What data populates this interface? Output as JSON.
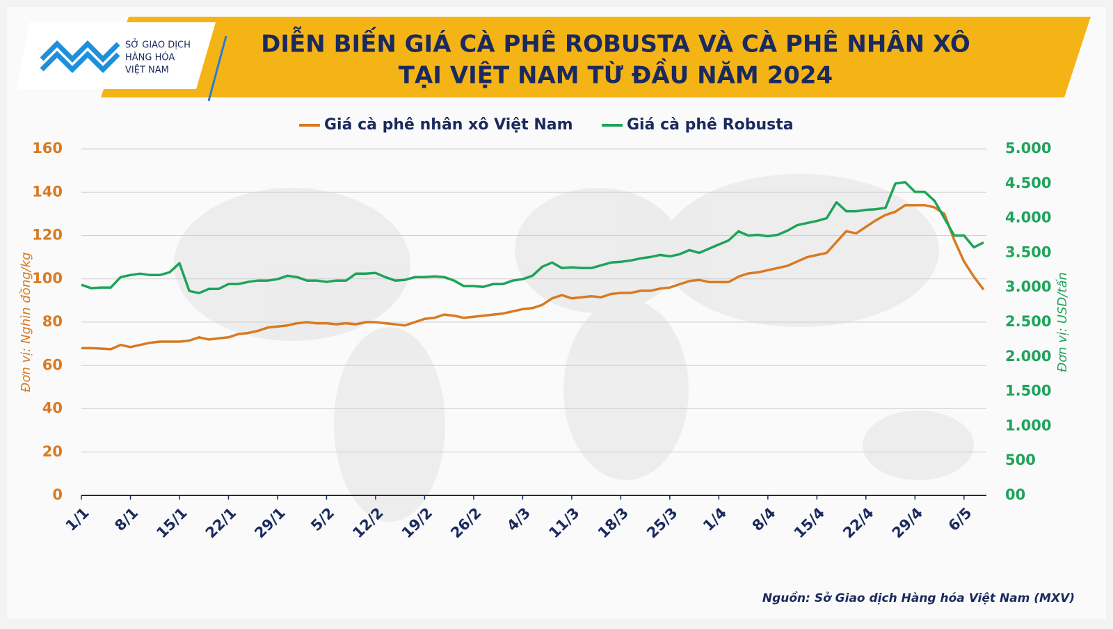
{
  "logo": [
    "SỞ GIAO DỊCH",
    "HÀNG HÓA",
    "VIỆT NAM"
  ],
  "source": "Nguồn: Sở Giao dịch Hàng hóa Việt Nam (MXV)",
  "chart_data": {
    "type": "line",
    "title": [
      "DIỄN BIẾN GIÁ CÀ PHÊ ROBUSTA VÀ CÀ PHÊ NHÂN XÔ",
      "TẠI VIỆT NAM TỪ ĐẦU NĂM 2024"
    ],
    "y_label": "Đơn vị: Nghìn đồng/kg",
    "y2_label": "Đơn vị: USD/tấn",
    "categories": [
      "1/1",
      null,
      null,
      null,
      null,
      "8/1",
      null,
      null,
      null,
      null,
      "15/1",
      null,
      null,
      null,
      null,
      "22/1",
      null,
      null,
      null,
      null,
      "29/1",
      null,
      null,
      null,
      null,
      "5/2",
      null,
      null,
      null,
      null,
      "12/2",
      null,
      null,
      null,
      null,
      "19/2",
      null,
      null,
      null,
      null,
      "26/2",
      null,
      null,
      null,
      null,
      "4/3",
      null,
      null,
      null,
      null,
      "11/3",
      null,
      null,
      null,
      null,
      "18/3",
      null,
      null,
      null,
      null,
      "25/3",
      null,
      null,
      null,
      null,
      "1/4",
      null,
      null,
      null,
      null,
      "8/4",
      null,
      null,
      null,
      null,
      "15/4",
      null,
      null,
      null,
      null,
      "22/4",
      null,
      null,
      null,
      null,
      "29/4",
      null,
      null,
      null,
      null,
      "6/5",
      null,
      null
    ],
    "series": [
      {
        "name": "Giá cà phê nhân xô Việt Nam",
        "color": "#d87a22",
        "values": [
          68,
          68,
          67.8,
          67.5,
          69.5,
          68.5,
          69.5,
          70.5,
          71,
          71,
          71,
          71.5,
          73,
          72,
          72.5,
          73,
          74.5,
          75,
          76,
          77.5,
          78,
          78.5,
          79.5,
          80,
          79.5,
          79.5,
          79,
          79.5,
          79,
          80,
          80,
          79.5,
          79,
          78.5,
          80,
          81.5,
          82,
          83.5,
          83,
          82,
          82.5,
          83,
          83.5,
          84,
          85,
          86,
          86.5,
          88,
          91,
          92.5,
          91,
          91.5,
          92,
          91.5,
          93,
          93.5,
          93.5,
          94.5,
          94.5,
          95.5,
          96,
          97.5,
          99,
          99.5,
          98.5,
          98.5,
          98.5,
          101,
          102.5,
          103,
          104,
          105,
          106,
          108,
          110,
          111,
          112,
          117,
          122,
          121,
          124,
          127,
          129.5,
          131,
          134,
          134,
          134,
          133,
          130,
          118,
          108,
          101,
          95
        ]
      },
      {
        "name": "Giá cà phê Robusta",
        "color": "#1ea35a",
        "axis": "y2",
        "values": [
          3040,
          2990,
          3000,
          3000,
          3150,
          3180,
          3200,
          3180,
          3180,
          3220,
          3350,
          2950,
          2920,
          2980,
          2980,
          3050,
          3050,
          3080,
          3100,
          3100,
          3120,
          3170,
          3150,
          3100,
          3100,
          3080,
          3100,
          3100,
          3200,
          3200,
          3210,
          3150,
          3100,
          3110,
          3150,
          3150,
          3160,
          3150,
          3100,
          3020,
          3020,
          3010,
          3050,
          3050,
          3100,
          3120,
          3170,
          3300,
          3360,
          3280,
          3290,
          3280,
          3280,
          3320,
          3360,
          3370,
          3390,
          3420,
          3440,
          3470,
          3450,
          3480,
          3540,
          3500,
          3560,
          3620,
          3680,
          3810,
          3750,
          3760,
          3740,
          3760,
          3820,
          3900,
          3930,
          3960,
          4000,
          4230,
          4100,
          4100,
          4120,
          4130,
          4150,
          4500,
          4520,
          4380,
          4380,
          4250,
          4000,
          3750,
          3750,
          3580,
          3650
        ]
      }
    ],
    "ylim": [
      0,
      160
    ],
    "yticks": [
      0,
      20,
      40,
      60,
      80,
      100,
      120,
      140,
      160
    ],
    "y2lim": [
      0,
      5000
    ],
    "y2ticks": [
      {
        "value": 0,
        "label": "00"
      },
      500,
      {
        "value": 1000,
        "label": "1.000"
      },
      {
        "value": 1500,
        "label": "1.500"
      },
      {
        "value": 2000,
        "label": "2.000"
      },
      {
        "value": 2500,
        "label": "2.500"
      },
      {
        "value": 3000,
        "label": "3.000"
      },
      {
        "value": 3500,
        "label": "3.500"
      },
      {
        "value": 4000,
        "label": "4.000"
      },
      {
        "value": 4500,
        "label": "4.500"
      },
      {
        "value": 5000,
        "label": "5.000"
      }
    ],
    "grid": true,
    "legend": "top"
  }
}
